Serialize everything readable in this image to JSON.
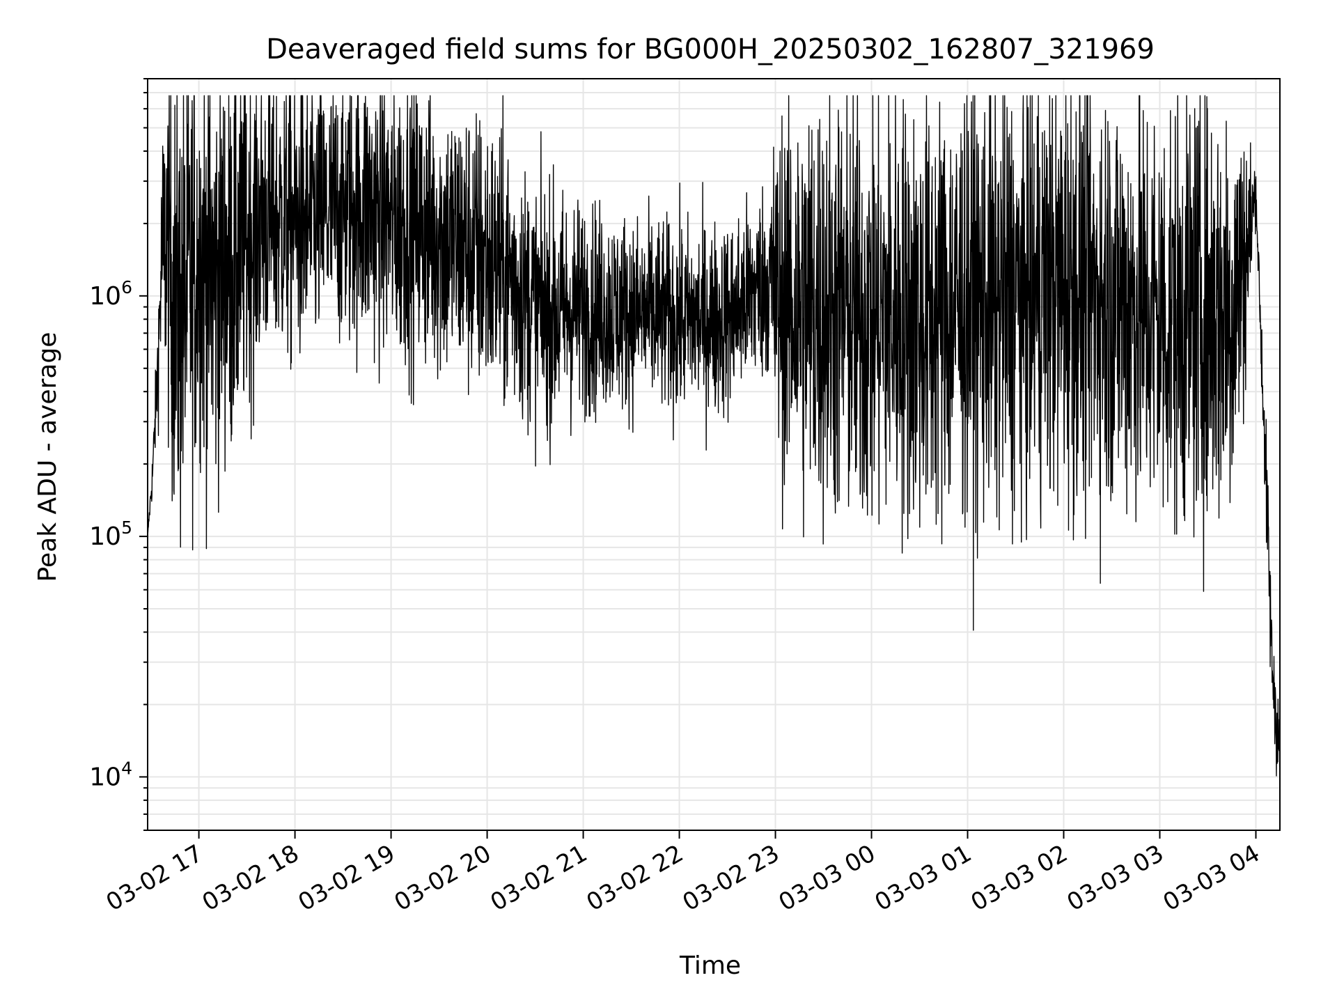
{
  "chart_data": {
    "type": "line",
    "title": "Deaveraged field sums for BG000H_20250302_162807_321969",
    "xlabel": "Time",
    "ylabel": "Peak ADU - average",
    "yscale": "log",
    "ylim": [
      6000,
      8000000
    ],
    "xlim": [
      "2025-03-02 16:28",
      "2025-03-03 04:15"
    ],
    "grid": true,
    "line_color": "#000000",
    "x_ticks": [
      {
        "value": "2025-03-02 17:00",
        "label": "03-02 17"
      },
      {
        "value": "2025-03-02 18:00",
        "label": "03-02 18"
      },
      {
        "value": "2025-03-02 19:00",
        "label": "03-02 19"
      },
      {
        "value": "2025-03-02 20:00",
        "label": "03-02 20"
      },
      {
        "value": "2025-03-02 21:00",
        "label": "03-02 21"
      },
      {
        "value": "2025-03-02 22:00",
        "label": "03-02 22"
      },
      {
        "value": "2025-03-02 23:00",
        "label": "03-02 23"
      },
      {
        "value": "2025-03-03 00:00",
        "label": "03-03 00"
      },
      {
        "value": "2025-03-03 01:00",
        "label": "03-03 01"
      },
      {
        "value": "2025-03-03 02:00",
        "label": "03-03 02"
      },
      {
        "value": "2025-03-03 03:00",
        "label": "03-03 03"
      },
      {
        "value": "2025-03-03 04:00",
        "label": "03-03 04"
      }
    ],
    "y_ticks": [
      {
        "value": 10000,
        "base": "10",
        "exp": "4"
      },
      {
        "value": 100000,
        "base": "10",
        "exp": "5"
      },
      {
        "value": 1000000,
        "base": "10",
        "exp": "6"
      }
    ],
    "series": [
      {
        "x": [
          "2025-03-02 16:28",
          "2025-03-02 16:31",
          "2025-03-02 16:34",
          "2025-03-02 16:37",
          "2025-03-02 16:40",
          "2025-03-02 16:44",
          "2025-03-02 16:48",
          "2025-03-02 16:52",
          "2025-03-02 16:56",
          "2025-03-02 17:00",
          "2025-03-02 17:05",
          "2025-03-02 17:10",
          "2025-03-02 17:15",
          "2025-03-02 17:20",
          "2025-03-02 17:25",
          "2025-03-02 17:30",
          "2025-03-02 17:40",
          "2025-03-02 17:50",
          "2025-03-02 18:00",
          "2025-03-02 18:15",
          "2025-03-02 18:30",
          "2025-03-02 18:45",
          "2025-03-02 19:00",
          "2025-03-02 19:15",
          "2025-03-02 19:30",
          "2025-03-02 19:45",
          "2025-03-02 20:00",
          "2025-03-02 20:15",
          "2025-03-02 20:30",
          "2025-03-02 20:45",
          "2025-03-02 21:00",
          "2025-03-02 21:30",
          "2025-03-02 22:00",
          "2025-03-02 22:30",
          "2025-03-02 22:55",
          "2025-03-02 23:00",
          "2025-03-02 23:15",
          "2025-03-02 23:30",
          "2025-03-02 23:45",
          "2025-03-03 00:00",
          "2025-03-03 00:15",
          "2025-03-03 00:30",
          "2025-03-03 00:45",
          "2025-03-03 01:00",
          "2025-03-03 01:15",
          "2025-03-03 01:30",
          "2025-03-03 01:45",
          "2025-03-03 02:00",
          "2025-03-03 02:15",
          "2025-03-03 02:30",
          "2025-03-03 02:45",
          "2025-03-03 03:00",
          "2025-03-03 03:15",
          "2025-03-03 03:30",
          "2025-03-03 03:45",
          "2025-03-03 03:55",
          "2025-03-03 04:00",
          "2025-03-03 04:05",
          "2025-03-03 04:08",
          "2025-03-03 04:10",
          "2025-03-03 04:12",
          "2025-03-03 04:14",
          "2025-03-03 04:15"
        ],
        "center": [
          100000,
          180000,
          450000,
          1500000,
          1700000,
          1000000,
          800000,
          1000000,
          1200000,
          1500000,
          1300000,
          1100000,
          1400000,
          1300000,
          1500000,
          1700000,
          2100000,
          2100000,
          2000000,
          2100000,
          2300000,
          2300000,
          2100000,
          2000000,
          1800000,
          1600000,
          1400000,
          1200000,
          900000,
          850000,
          900000,
          850000,
          800000,
          800000,
          1200000,
          1000000,
          900000,
          900000,
          850000,
          800000,
          850000,
          800000,
          850000,
          950000,
          900000,
          1000000,
          1050000,
          1100000,
          1050000,
          1000000,
          900000,
          800000,
          850000,
          850000,
          900000,
          1600000,
          2800000,
          300000,
          80000,
          30000,
          20000,
          15000,
          11000
        ],
        "spread": [
          0.0,
          0.05,
          0.1,
          0.25,
          0.35,
          0.45,
          0.5,
          0.45,
          0.45,
          0.4,
          0.45,
          0.45,
          0.4,
          0.4,
          0.4,
          0.35,
          0.3,
          0.3,
          0.3,
          0.28,
          0.28,
          0.3,
          0.3,
          0.3,
          0.3,
          0.3,
          0.3,
          0.28,
          0.25,
          0.25,
          0.22,
          0.2,
          0.2,
          0.2,
          0.2,
          0.35,
          0.45,
          0.45,
          0.45,
          0.45,
          0.45,
          0.45,
          0.45,
          0.45,
          0.45,
          0.45,
          0.45,
          0.45,
          0.45,
          0.45,
          0.45,
          0.45,
          0.45,
          0.45,
          0.45,
          0.25,
          0.05,
          0.1,
          0.15,
          0.1,
          0.1,
          0.12,
          0.1
        ]
      }
    ]
  }
}
